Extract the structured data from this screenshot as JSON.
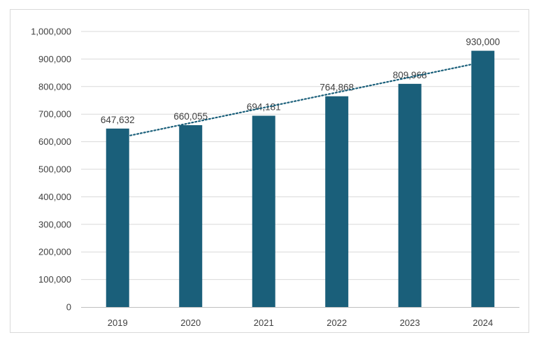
{
  "chart_data": {
    "type": "bar",
    "title": "",
    "xlabel": "",
    "ylabel": "",
    "categories": [
      "2019",
      "2020",
      "2021",
      "2022",
      "2023",
      "2024"
    ],
    "values": [
      647632,
      660055,
      694181,
      764868,
      809968,
      930000
    ],
    "data_labels": [
      "647,632",
      "660,055",
      "694,181",
      "764,868",
      "809,968",
      "930,000"
    ],
    "ylim": [
      0,
      1000000
    ],
    "yticks": [
      0,
      100000,
      200000,
      300000,
      400000,
      500000,
      600000,
      700000,
      800000,
      900000,
      1000000
    ],
    "ytick_labels": [
      "0",
      "100,000",
      "200,000",
      "300,000",
      "400,000",
      "500,000",
      "600,000",
      "700,000",
      "800,000",
      "900,000",
      "1,000,000"
    ],
    "grid": true,
    "legend": "none",
    "trendline": {
      "type": "linear",
      "style": "dotted"
    },
    "colors": {
      "bar": "#1a5f7a",
      "trendline": "#1a5f7a",
      "grid": "#d9d9d9",
      "text": "#404040"
    }
  }
}
